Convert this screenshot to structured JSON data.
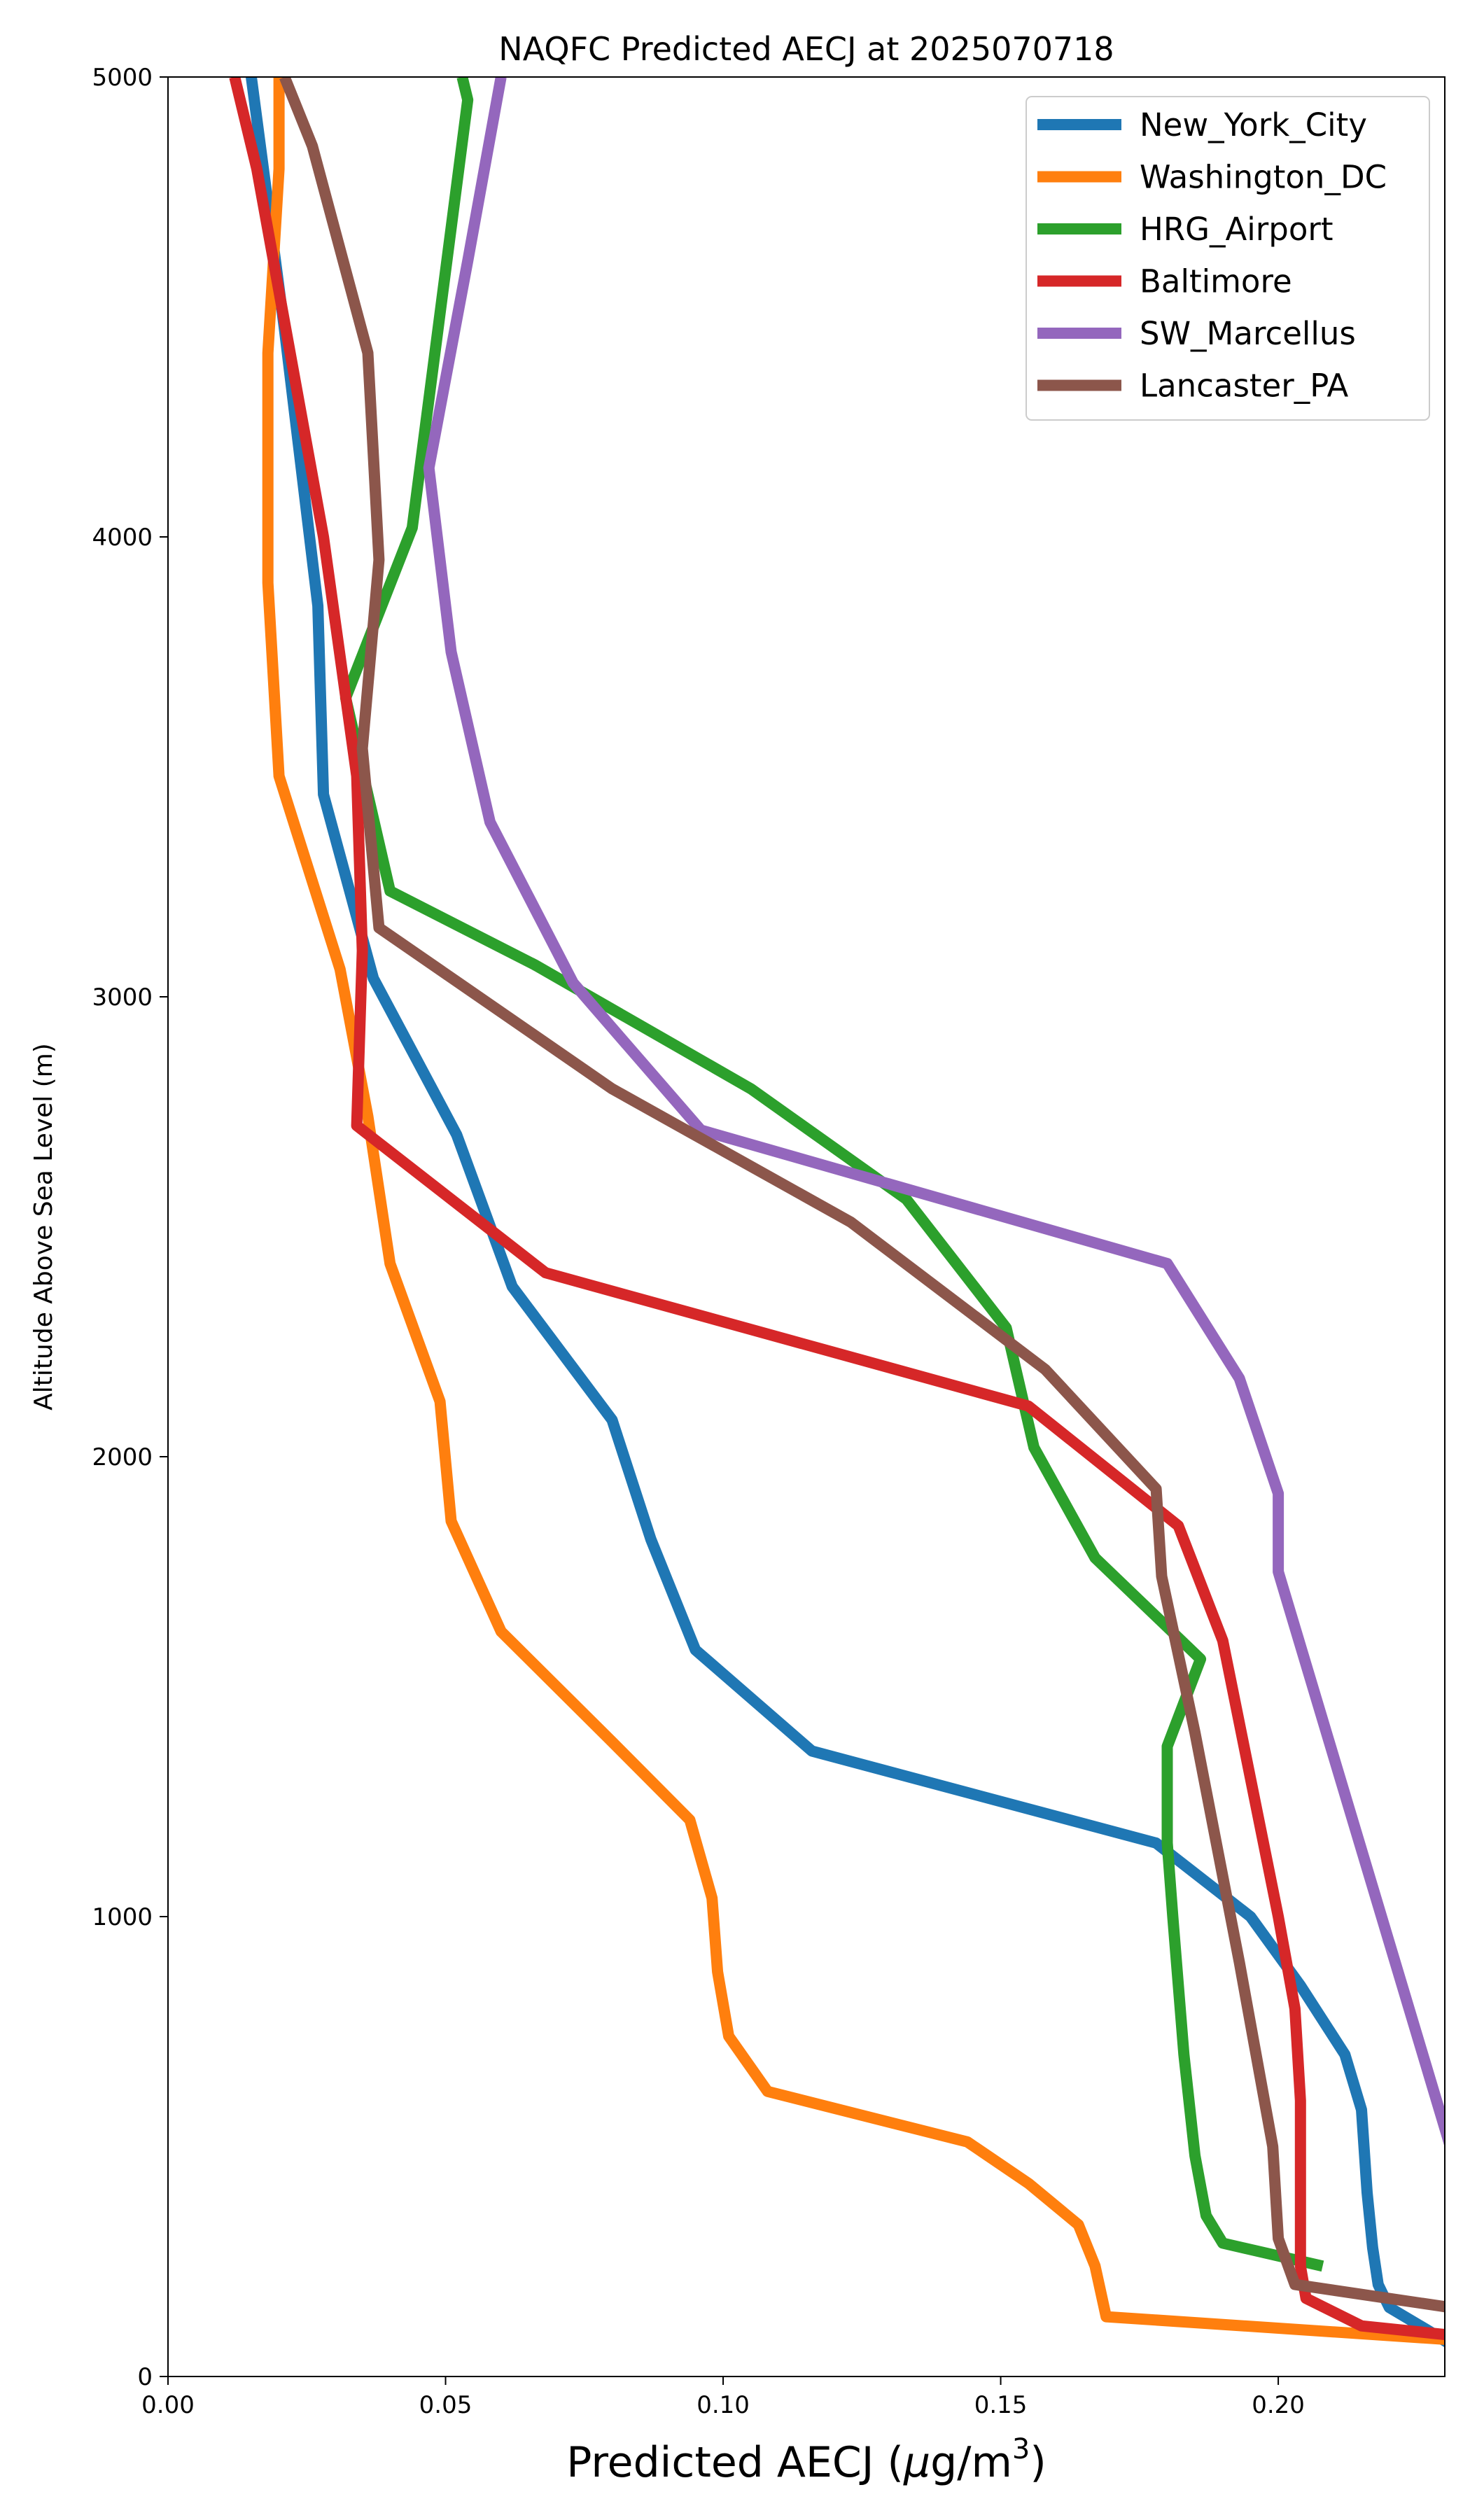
{
  "chart_data": {
    "type": "line",
    "title": "NAQFC Predicted AECJ at 2025070718",
    "xlabel_main": "Predicted AECJ (",
    "xlabel_mu": "μ",
    "xlabel_unit": "g/m",
    "xlabel_sup": "3",
    "xlabel_end": ")",
    "ylabel": "Altitude Above Sea Level (m)",
    "xlim": [
      0.0,
      0.23
    ],
    "ylim": [
      0,
      5000
    ],
    "xticks": [
      0.0,
      0.05,
      0.1,
      0.15,
      0.2
    ],
    "xtick_labels": [
      "0.00",
      "0.05",
      "0.10",
      "0.15",
      "0.20"
    ],
    "yticks": [
      0,
      1000,
      2000,
      3000,
      4000,
      5000
    ],
    "ytick_labels": [
      "0",
      "1000",
      "2000",
      "3000",
      "4000",
      "5000"
    ],
    "grid": false,
    "legend_position": "top-right",
    "series": [
      {
        "name": "New_York_City",
        "color": "#1f77b4",
        "points": [
          [
            0.231,
            70
          ],
          [
            0.227,
            100
          ],
          [
            0.22,
            150
          ],
          [
            0.218,
            200
          ],
          [
            0.217,
            280
          ],
          [
            0.216,
            400
          ],
          [
            0.215,
            580
          ],
          [
            0.212,
            700
          ],
          [
            0.204,
            850
          ],
          [
            0.195,
            1000
          ],
          [
            0.178,
            1160
          ],
          [
            0.116,
            1360
          ],
          [
            0.095,
            1580
          ],
          [
            0.087,
            1820
          ],
          [
            0.08,
            2080
          ],
          [
            0.062,
            2370
          ],
          [
            0.052,
            2700
          ],
          [
            0.037,
            3040
          ],
          [
            0.028,
            3440
          ],
          [
            0.027,
            3850
          ],
          [
            0.021,
            4450
          ],
          [
            0.015,
            5000
          ]
        ]
      },
      {
        "name": "Washington_DC",
        "color": "#ff7f0e",
        "points": [
          [
            0.231,
            80
          ],
          [
            0.169,
            130
          ],
          [
            0.167,
            240
          ],
          [
            0.164,
            330
          ],
          [
            0.155,
            420
          ],
          [
            0.144,
            510
          ],
          [
            0.108,
            620
          ],
          [
            0.101,
            740
          ],
          [
            0.099,
            880
          ],
          [
            0.098,
            1040
          ],
          [
            0.094,
            1210
          ],
          [
            0.08,
            1380
          ],
          [
            0.06,
            1620
          ],
          [
            0.051,
            1860
          ],
          [
            0.049,
            2120
          ],
          [
            0.04,
            2420
          ],
          [
            0.036,
            2740
          ],
          [
            0.031,
            3060
          ],
          [
            0.02,
            3480
          ],
          [
            0.018,
            3900
          ],
          [
            0.018,
            4400
          ],
          [
            0.02,
            4800
          ],
          [
            0.02,
            5000
          ]
        ]
      },
      {
        "name": "HRG_Airport",
        "color": "#2ca02c",
        "points": [
          [
            0.208,
            240
          ],
          [
            0.19,
            290
          ],
          [
            0.187,
            350
          ],
          [
            0.185,
            480
          ],
          [
            0.183,
            700
          ],
          [
            0.181,
            1000
          ],
          [
            0.18,
            1160
          ],
          [
            0.18,
            1370
          ],
          [
            0.186,
            1560
          ],
          [
            0.167,
            1780
          ],
          [
            0.156,
            2020
          ],
          [
            0.151,
            2280
          ],
          [
            0.133,
            2560
          ],
          [
            0.105,
            2800
          ],
          [
            0.066,
            3070
          ],
          [
            0.04,
            3230
          ],
          [
            0.032,
            3650
          ],
          [
            0.044,
            4020
          ],
          [
            0.054,
            4950
          ],
          [
            0.053,
            5000
          ]
        ]
      },
      {
        "name": "Baltimore",
        "color": "#d62728",
        "points": [
          [
            0.231,
            90
          ],
          [
            0.215,
            110
          ],
          [
            0.205,
            170
          ],
          [
            0.204,
            240
          ],
          [
            0.204,
            400
          ],
          [
            0.204,
            600
          ],
          [
            0.203,
            800
          ],
          [
            0.2,
            1000
          ],
          [
            0.19,
            1600
          ],
          [
            0.182,
            1850
          ],
          [
            0.155,
            2110
          ],
          [
            0.068,
            2400
          ],
          [
            0.034,
            2720
          ],
          [
            0.035,
            3100
          ],
          [
            0.034,
            3480
          ],
          [
            0.028,
            4000
          ],
          [
            0.016,
            4800
          ],
          [
            0.012,
            5000
          ]
        ]
      },
      {
        "name": "SW_Marcellus",
        "color": "#9467bd",
        "points": [
          [
            0.231,
            500
          ],
          [
            0.2,
            1750
          ],
          [
            0.2,
            1920
          ],
          [
            0.193,
            2170
          ],
          [
            0.18,
            2420
          ],
          [
            0.096,
            2710
          ],
          [
            0.073,
            3030
          ],
          [
            0.058,
            3380
          ],
          [
            0.051,
            3750
          ],
          [
            0.047,
            4150
          ],
          [
            0.054,
            4600
          ],
          [
            0.06,
            5000
          ]
        ]
      },
      {
        "name": "Lancaster_PA",
        "color": "#8c564b",
        "points": [
          [
            0.231,
            150
          ],
          [
            0.203,
            200
          ],
          [
            0.2,
            300
          ],
          [
            0.199,
            500
          ],
          [
            0.193,
            900
          ],
          [
            0.185,
            1400
          ],
          [
            0.179,
            1740
          ],
          [
            0.178,
            1930
          ],
          [
            0.158,
            2190
          ],
          [
            0.123,
            2510
          ],
          [
            0.08,
            2800
          ],
          [
            0.038,
            3150
          ],
          [
            0.035,
            3540
          ],
          [
            0.038,
            3950
          ],
          [
            0.036,
            4400
          ],
          [
            0.026,
            4850
          ],
          [
            0.021,
            5000
          ]
        ]
      }
    ]
  }
}
